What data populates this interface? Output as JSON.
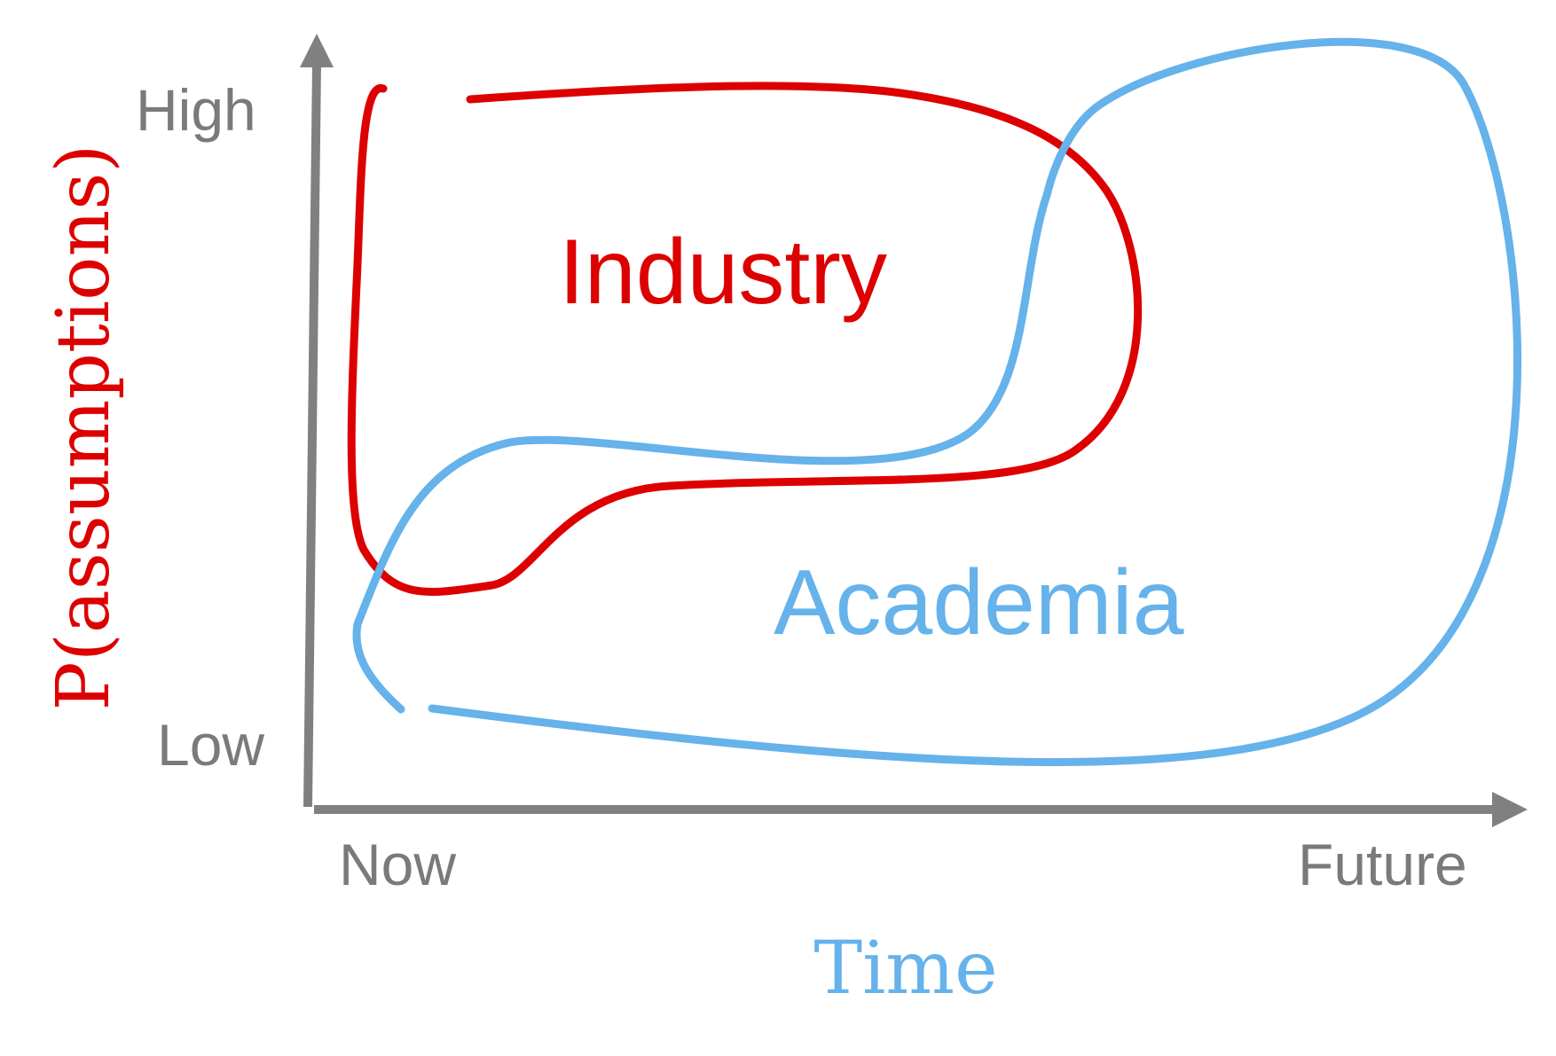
{
  "colors": {
    "axis": "#808080",
    "label_gray": "#7a7a7a",
    "industry": "#dd0000",
    "academia": "#66b2ea"
  },
  "axes": {
    "y_title": "P(assumptions)",
    "x_title": "Time",
    "y_high": "High",
    "y_low": "Low",
    "x_start": "Now",
    "x_end": "Future"
  },
  "regions": {
    "industry": "Industry",
    "academia": "Academia"
  }
}
